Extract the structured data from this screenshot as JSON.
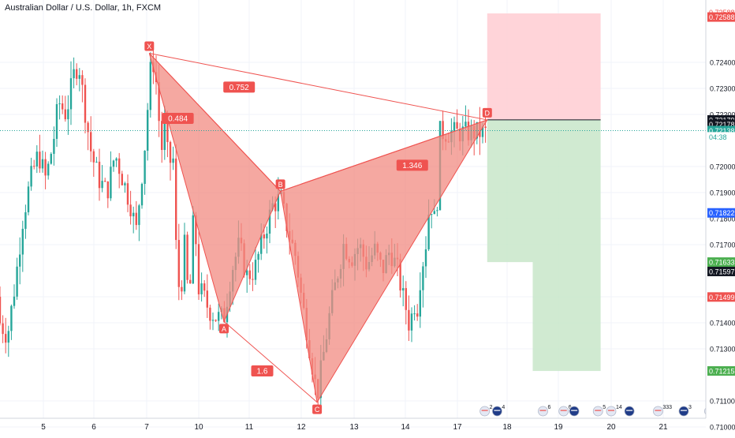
{
  "chart_data": {
    "type": "candlestick",
    "title": "Australian Dollar / U.S. Dollar, 1h, FXCM",
    "x_tick_labels": [
      "5",
      "6",
      "7",
      "10",
      "11",
      "12",
      "13",
      "14",
      "17",
      "18",
      "19",
      "20",
      "21"
    ],
    "y_tick_labels": [
      "0.72400",
      "0.72300",
      "0.72200",
      "0.72000",
      "0.71900",
      "0.71800",
      "0.71700",
      "0.71500",
      "0.71400",
      "0.71300",
      "0.71100",
      "0.71000"
    ],
    "ylim": [
      0.7095,
      0.7262
    ],
    "grid": true,
    "colors": {
      "up": "#26a69a",
      "down": "#ef5350",
      "pattern_fill": "#f28b82",
      "pattern_line": "#ef5350",
      "stop_zone": "#ffcdd2",
      "target_zone": "#c8e6c9"
    },
    "harmonic_pattern": {
      "points": [
        {
          "label": "X",
          "day": 7.1,
          "price": 0.72435
        },
        {
          "label": "A",
          "day": 10.5,
          "price": 0.71405
        },
        {
          "label": "B",
          "day": 11.6,
          "price": 0.71905
        },
        {
          "label": "C",
          "day": 12.3,
          "price": 0.71095
        },
        {
          "label": "D",
          "day": 17.6,
          "price": 0.72179
        }
      ],
      "ratios": [
        {
          "label": "0.484",
          "day": 8.4,
          "price": 0.72185
        },
        {
          "label": "0.752",
          "day": 10.8,
          "price": 0.72305
        },
        {
          "label": "1.346",
          "day": 14.4,
          "price": 0.72005
        },
        {
          "label": "1.6",
          "day": 11.25,
          "price": 0.71215
        }
      ]
    },
    "position_tool": {
      "entry": 0.72179,
      "stop": 0.72588,
      "target1": 0.71633,
      "target2": 0.71215,
      "start_day": 17.6,
      "mid_day": 18.5,
      "end_day": 19.8
    },
    "current_price": 0.72138,
    "countdown": "04:38",
    "price_labels": [
      {
        "text": "0.72588",
        "bg": "#ffffff",
        "fg": "#ef5350",
        "price": 0.72592
      },
      {
        "text": "0.72588",
        "bg": "#ef5350",
        "fg": "#ffffff",
        "price": 0.72574
      },
      {
        "text": "0.72179",
        "bg": "#131722",
        "fg": "#ffffff",
        "price": 0.72179
      },
      {
        "text": "0.72178",
        "bg": "#131722",
        "fg": "#ffffff",
        "price": 0.72162
      },
      {
        "text": "0.72138",
        "bg": "#26a69a",
        "fg": "#ffffff",
        "price": 0.72138
      },
      {
        "text": "04:38",
        "bg": "#ffffff",
        "fg": "#26a69a",
        "price": 0.72114
      },
      {
        "text": "0.71822",
        "bg": "#2962ff",
        "fg": "#ffffff",
        "price": 0.71822
      },
      {
        "text": "0.71633",
        "bg": "#4caf50",
        "fg": "#ffffff",
        "price": 0.71633
      },
      {
        "text": "0.71597",
        "bg": "#131722",
        "fg": "#ffffff",
        "price": 0.71597
      },
      {
        "text": "0.71499",
        "bg": "#ef5350",
        "fg": "#ffffff",
        "price": 0.71499
      },
      {
        "text": "0.71215",
        "bg": "#4caf50",
        "fg": "#ffffff",
        "price": 0.71215
      }
    ],
    "events": [
      {
        "day": 17.55,
        "flag": "us",
        "count": "2"
      },
      {
        "day": 17.8,
        "flag": "au",
        "count": "4"
      },
      {
        "day": 18.7,
        "flag": "us",
        "count": "6"
      },
      {
        "day": 19.1,
        "flag": "us",
        "count": "6"
      },
      {
        "day": 19.3,
        "flag": "au",
        "count": ""
      },
      {
        "day": 19.75,
        "flag": "us",
        "count": "5"
      },
      {
        "day": 20.0,
        "flag": "us",
        "count": "14"
      },
      {
        "day": 20.35,
        "flag": "au",
        "count": ""
      },
      {
        "day": 20.9,
        "flag": "us",
        "count": "333"
      },
      {
        "day": 21.4,
        "flag": "au",
        "count": "3"
      },
      {
        "day": 21.9,
        "flag": "us",
        "count": "3"
      }
    ],
    "price_path": [
      [
        4.0,
        0.715
      ],
      [
        4.15,
        0.714
      ],
      [
        4.3,
        0.7135
      ],
      [
        4.45,
        0.7155
      ],
      [
        4.6,
        0.718
      ],
      [
        4.75,
        0.7195
      ],
      [
        4.9,
        0.7205
      ],
      [
        5.05,
        0.7195
      ],
      [
        5.2,
        0.721
      ],
      [
        5.3,
        0.7225
      ],
      [
        5.45,
        0.722
      ],
      [
        5.6,
        0.7235
      ],
      [
        5.7,
        0.724
      ],
      [
        5.8,
        0.7225
      ],
      [
        5.95,
        0.7205
      ],
      [
        6.1,
        0.7195
      ],
      [
        6.25,
        0.719
      ],
      [
        6.4,
        0.7205
      ],
      [
        6.55,
        0.7195
      ],
      [
        6.7,
        0.7185
      ],
      [
        6.8,
        0.7175
      ],
      [
        6.9,
        0.7195
      ],
      [
        7.0,
        0.7215
      ],
      [
        7.1,
        0.7235
      ],
      [
        7.25,
        0.724
      ],
      [
        7.4,
        0.723
      ],
      [
        7.55,
        0.7205
      ],
      [
        7.7,
        0.7215
      ],
      [
        7.85,
        0.72
      ],
      [
        8.0,
        0.7205
      ],
      [
        8.15,
        0.7195
      ],
      [
        8.25,
        0.717
      ],
      [
        8.35,
        0.716
      ],
      [
        8.45,
        0.7155
      ],
      [
        8.6,
        0.715
      ],
      [
        8.75,
        0.716
      ],
      [
        8.9,
        0.717
      ],
      [
        9.05,
        0.716
      ],
      [
        9.2,
        0.715
      ],
      [
        9.35,
        0.7155
      ],
      [
        9.5,
        0.7175
      ],
      [
        9.65,
        0.718
      ],
      [
        9.8,
        0.717
      ],
      [
        9.95,
        0.7155
      ],
      [
        10.1,
        0.715
      ],
      [
        10.2,
        0.7145
      ],
      [
        10.35,
        0.7142
      ],
      [
        10.5,
        0.7142
      ],
      [
        10.65,
        0.716
      ],
      [
        10.8,
        0.717
      ],
      [
        10.95,
        0.7158
      ],
      [
        11.1,
        0.716
      ],
      [
        11.3,
        0.7175
      ],
      [
        11.45,
        0.7185
      ],
      [
        11.6,
        0.7188
      ],
      [
        11.75,
        0.7175
      ],
      [
        11.9,
        0.7165
      ],
      [
        12.0,
        0.715
      ],
      [
        12.1,
        0.7138
      ],
      [
        12.2,
        0.7125
      ],
      [
        12.3,
        0.7112
      ],
      [
        12.4,
        0.7125
      ],
      [
        12.55,
        0.7145
      ],
      [
        12.7,
        0.716
      ],
      [
        12.8,
        0.717
      ],
      [
        12.95,
        0.7165
      ],
      [
        13.1,
        0.717
      ],
      [
        13.25,
        0.7162
      ],
      [
        13.4,
        0.7168
      ],
      [
        13.55,
        0.716
      ],
      [
        13.7,
        0.7168
      ],
      [
        13.85,
        0.716
      ],
      [
        13.95,
        0.715
      ],
      [
        14.05,
        0.7145
      ],
      [
        14.2,
        0.714
      ],
      [
        14.35,
        0.7142
      ],
      [
        14.5,
        0.715
      ],
      [
        14.6,
        0.714
      ],
      [
        14.75,
        0.715
      ],
      [
        14.9,
        0.716
      ],
      [
        15.05,
        0.7165
      ],
      [
        15.15,
        0.7168
      ],
      [
        15.3,
        0.718
      ],
      [
        15.45,
        0.7188
      ],
      [
        15.55,
        0.7183
      ],
      [
        15.65,
        0.7178
      ],
      [
        15.75,
        0.7185
      ],
      [
        15.85,
        0.7188
      ],
      [
        15.92,
        0.7195
      ],
      [
        15.98,
        0.7213
      ]
    ]
  }
}
